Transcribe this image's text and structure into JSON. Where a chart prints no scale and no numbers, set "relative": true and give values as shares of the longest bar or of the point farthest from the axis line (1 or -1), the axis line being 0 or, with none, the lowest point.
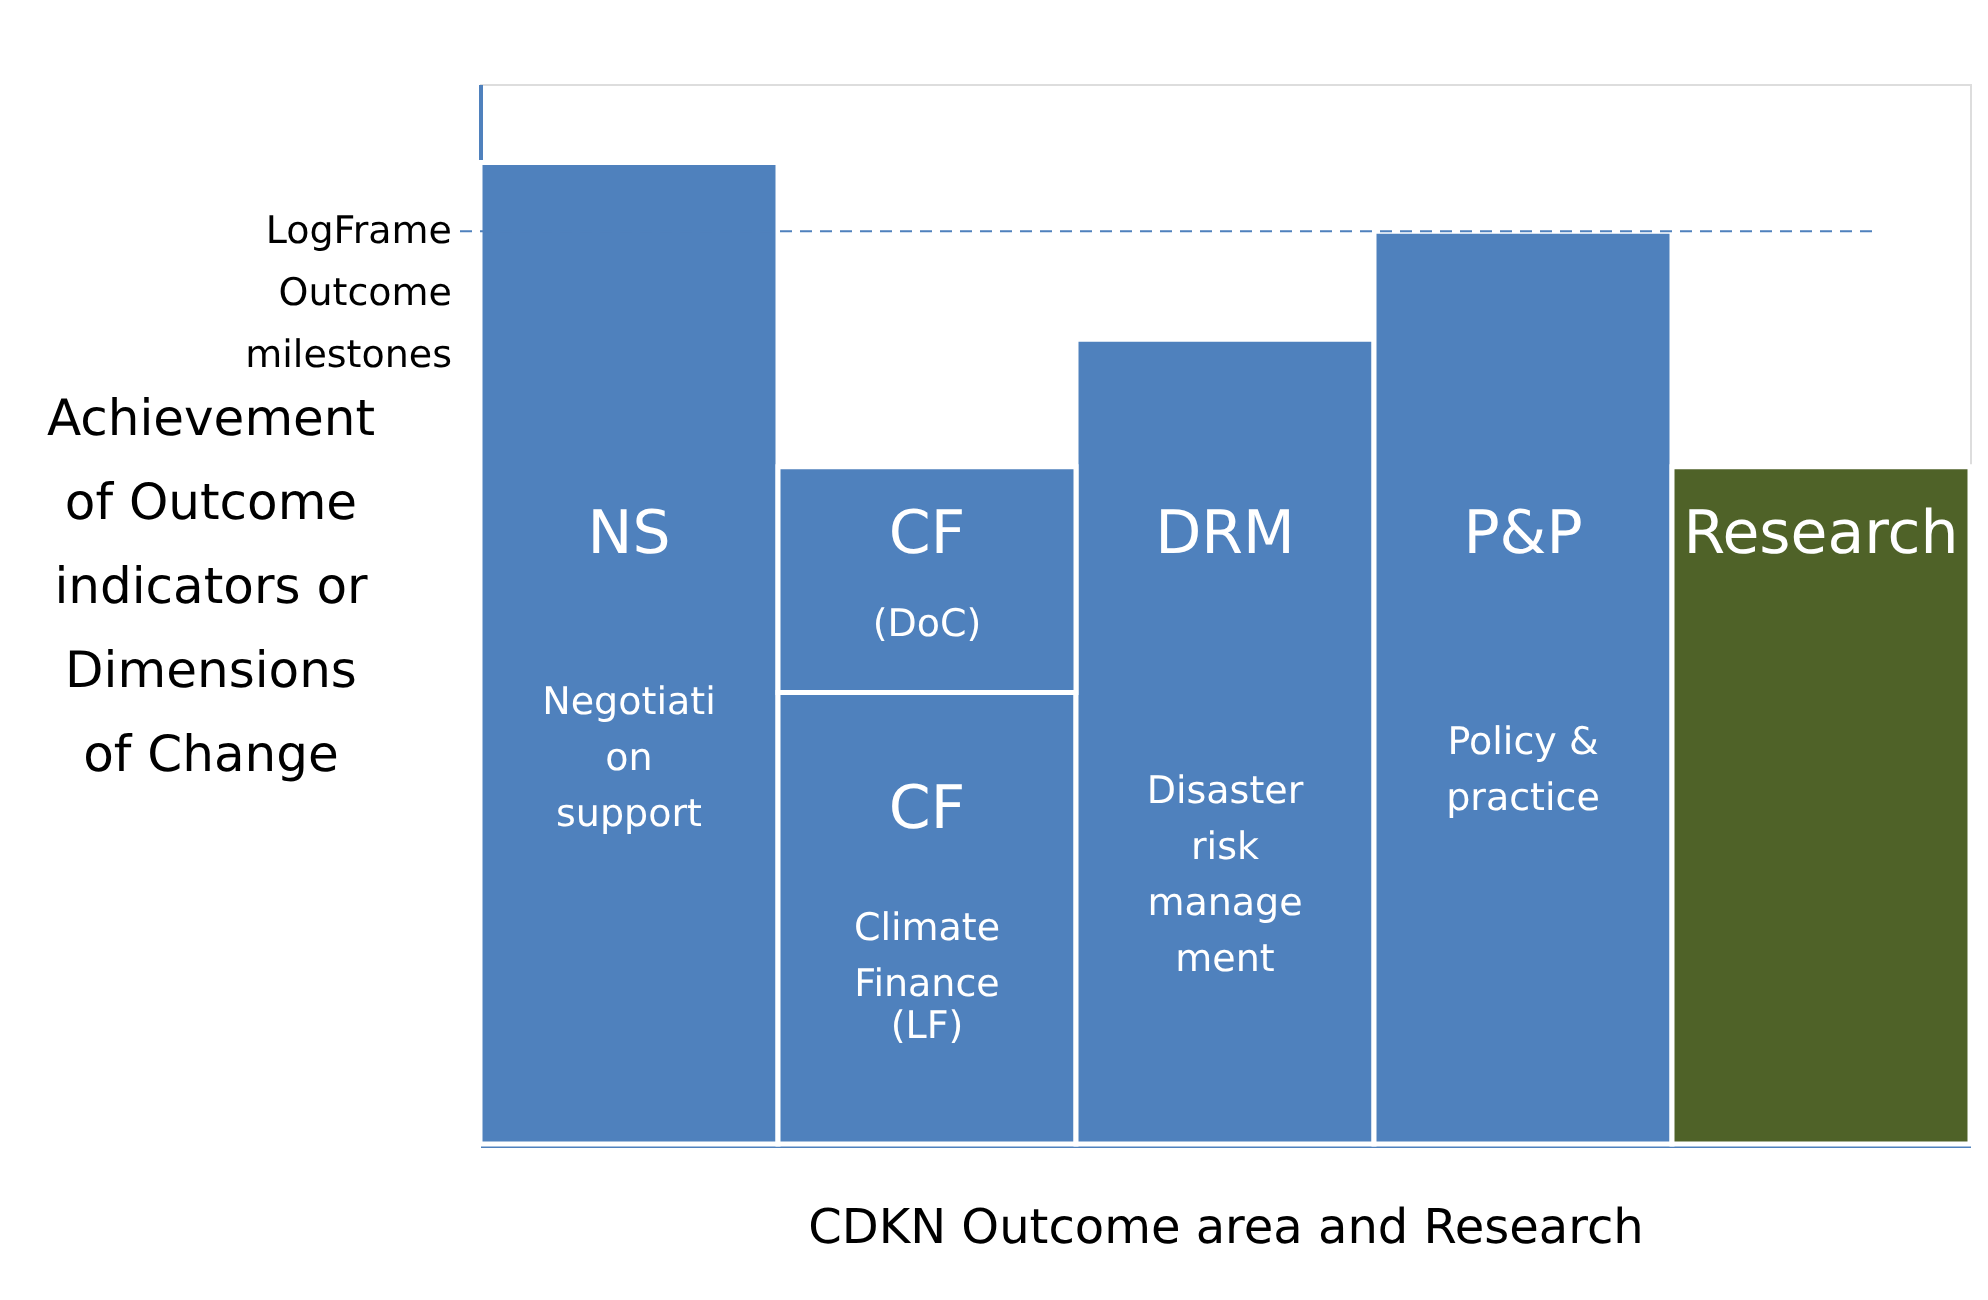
{
  "chart_data": {
    "type": "bar",
    "relative": true,
    "stacked": true,
    "xlabel": "CDKN Outcome area and Research",
    "ylabel": "Achievement\nof Outcome\nindicators or\nDimensions\nof Change",
    "categories": [
      "NS",
      "CF",
      "DRM",
      "P&P",
      "Research"
    ],
    "series": [
      {
        "colors": [
          "#4f81bd",
          "#4f81bd",
          "#4f81bd",
          "#4f81bd",
          "#4f6228"
        ],
        "values": [
          1,
          0.46,
          0.82,
          0.93,
          0.69
        ]
      },
      {
        "color": "#4f81bd",
        "values": [
          null,
          0.23,
          null,
          null,
          null
        ]
      }
    ],
    "ref_lines": [
      {
        "axis": "y",
        "value": 0.93,
        "label": "LogFrame\nOutcome\nmilestones",
        "color": "#4f81bd",
        "line_style": "dashed"
      }
    ],
    "annotations": [
      "Negotiati\non\nsupport",
      "(DoC)",
      "CF",
      "Climate\nFinance",
      "(LF)",
      "Disaster\nrisk\nmanage\nment",
      "Policy &\npractice"
    ],
    "grid": false,
    "tick_labels": false
  }
}
